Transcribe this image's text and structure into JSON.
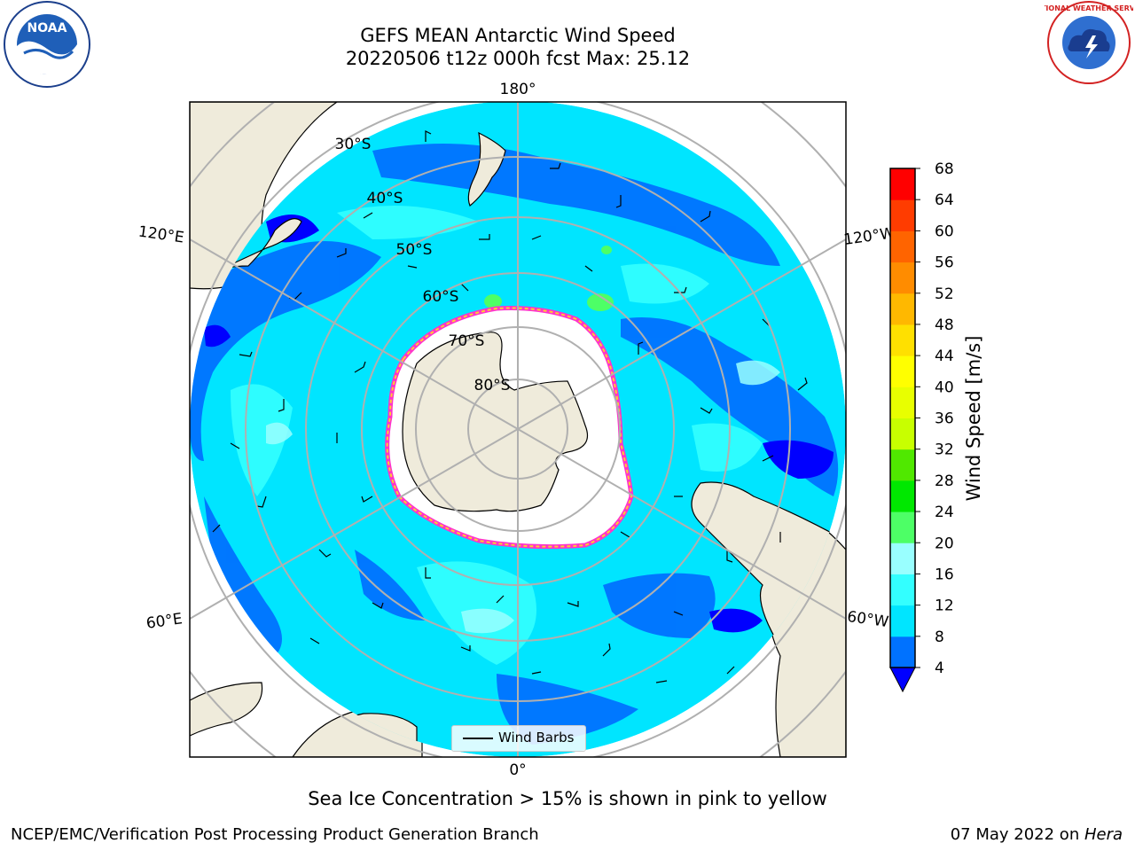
{
  "title": {
    "line1": "GEFS MEAN Antarctic Wind Speed",
    "line2": "20220506 t12z 000h fcst   Max: 25.12"
  },
  "logos": {
    "left": "noaa-logo",
    "left_text": "NOAA",
    "right": "national-weather-service-logo",
    "right_text": "NATIONAL WEATHER SERVICE"
  },
  "map": {
    "projection": "south-polar-stereographic",
    "longitude_labels": {
      "top": "180°",
      "upper_left": "120°E",
      "upper_right": "120°W",
      "lower_left": "60°E",
      "lower_right": "60°W",
      "bottom": "0°"
    },
    "latitude_labels": [
      "30°S",
      "40°S",
      "50°S",
      "60°S",
      "70°S",
      "80°S"
    ],
    "land_color": "#efebdb",
    "ice_edge_colors": [
      "#ff33cc",
      "#ffcc33"
    ],
    "legend_label": "Wind Barbs"
  },
  "colorbar": {
    "label": "Wind Speed [m/s]",
    "ticks": [
      "4",
      "8",
      "12",
      "16",
      "20",
      "24",
      "28",
      "32",
      "36",
      "40",
      "44",
      "48",
      "52",
      "56",
      "60",
      "64",
      "68"
    ],
    "colors": [
      "#0072ff",
      "#00e5ff",
      "#33ffff",
      "#99ffff",
      "#4dff66",
      "#00e800",
      "#50e800",
      "#c8ff00",
      "#e8ff00",
      "#ffff00",
      "#ffe000",
      "#ffb800",
      "#ff8c00",
      "#ff6400",
      "#ff3c00",
      "#ff0000"
    ],
    "under_color": "#0000ff"
  },
  "note": "Sea Ice Concentration > 15% is shown in pink to yellow",
  "footer": {
    "left": "NCEP/EMC/Verification Post Processing Product Generation Branch",
    "right_date": "07 May 2022 on ",
    "right_host": "Hera"
  }
}
